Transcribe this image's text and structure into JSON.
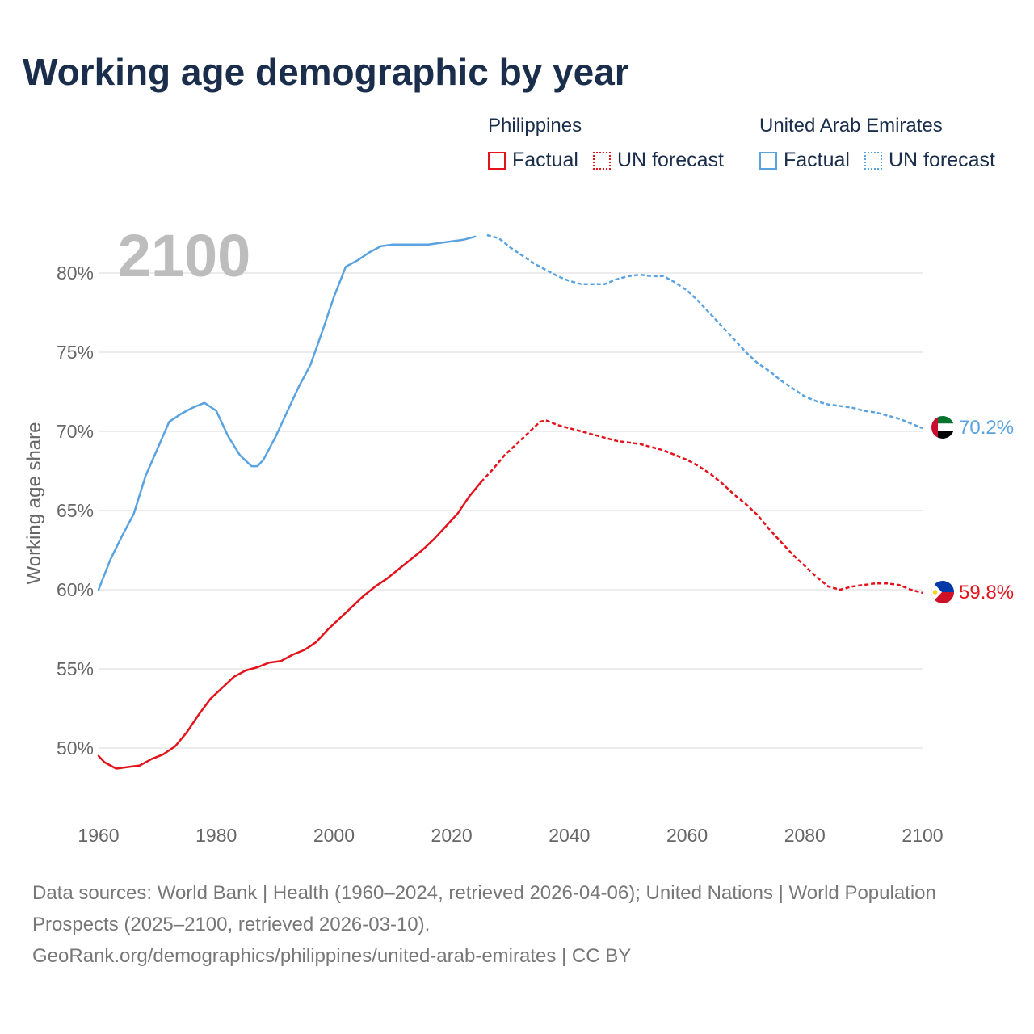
{
  "title": "Working age demographic by year",
  "legend": {
    "groups": [
      {
        "country": "Philippines",
        "factual_label": "Factual",
        "forecast_label": "UN forecast",
        "color": "#e3121b"
      },
      {
        "country": "United Arab Emirates",
        "factual_label": "Factual",
        "forecast_label": "UN forecast",
        "color": "#5ba3e0"
      }
    ]
  },
  "chart_data": {
    "type": "line",
    "title": "Working age demographic by year",
    "year_label": "2100",
    "xlabel": "",
    "ylabel": "Working age share",
    "xlim": [
      1960,
      2100
    ],
    "ylim": [
      46,
      84
    ],
    "x_ticks": [
      1960,
      1980,
      2000,
      2020,
      2040,
      2060,
      2080,
      2100
    ],
    "y_ticks": [
      50,
      55,
      60,
      65,
      70,
      75,
      80
    ],
    "y_tick_labels": [
      "50%",
      "55%",
      "60%",
      "65%",
      "70%",
      "75%",
      "80%"
    ],
    "grid": true,
    "forecast_start_year": 2025,
    "series": [
      {
        "name": "United Arab Emirates",
        "color": "#5ba3e0",
        "end_label": "70.2%",
        "flag": "uae-flag",
        "points": [
          [
            1960,
            60.0
          ],
          [
            1962,
            61.9
          ],
          [
            1964,
            63.4
          ],
          [
            1966,
            64.8
          ],
          [
            1968,
            67.2
          ],
          [
            1970,
            68.9
          ],
          [
            1972,
            70.6
          ],
          [
            1974,
            71.1
          ],
          [
            1976,
            71.5
          ],
          [
            1978,
            71.8
          ],
          [
            1980,
            71.3
          ],
          [
            1982,
            69.7
          ],
          [
            1984,
            68.5
          ],
          [
            1986,
            67.8
          ],
          [
            1987,
            67.8
          ],
          [
            1988,
            68.2
          ],
          [
            1990,
            69.6
          ],
          [
            1992,
            71.2
          ],
          [
            1994,
            72.8
          ],
          [
            1996,
            74.2
          ],
          [
            1998,
            76.3
          ],
          [
            2000,
            78.5
          ],
          [
            2002,
            80.4
          ],
          [
            2004,
            80.8
          ],
          [
            2006,
            81.3
          ],
          [
            2008,
            81.7
          ],
          [
            2010,
            81.8
          ],
          [
            2014,
            81.8
          ],
          [
            2016,
            81.8
          ],
          [
            2018,
            81.9
          ],
          [
            2020,
            82.0
          ],
          [
            2022,
            82.1
          ],
          [
            2024,
            82.3
          ],
          [
            2026,
            82.4
          ],
          [
            2028,
            82.2
          ],
          [
            2030,
            81.6
          ],
          [
            2032,
            81.1
          ],
          [
            2034,
            80.6
          ],
          [
            2036,
            80.2
          ],
          [
            2038,
            79.8
          ],
          [
            2040,
            79.5
          ],
          [
            2042,
            79.3
          ],
          [
            2044,
            79.3
          ],
          [
            2046,
            79.3
          ],
          [
            2048,
            79.6
          ],
          [
            2050,
            79.8
          ],
          [
            2052,
            79.9
          ],
          [
            2054,
            79.8
          ],
          [
            2056,
            79.8
          ],
          [
            2058,
            79.4
          ],
          [
            2060,
            78.9
          ],
          [
            2062,
            78.2
          ],
          [
            2064,
            77.4
          ],
          [
            2066,
            76.6
          ],
          [
            2068,
            75.8
          ],
          [
            2070,
            75.0
          ],
          [
            2072,
            74.3
          ],
          [
            2074,
            73.8
          ],
          [
            2076,
            73.2
          ],
          [
            2078,
            72.7
          ],
          [
            2080,
            72.2
          ],
          [
            2082,
            71.9
          ],
          [
            2084,
            71.7
          ],
          [
            2086,
            71.6
          ],
          [
            2088,
            71.5
          ],
          [
            2090,
            71.3
          ],
          [
            2092,
            71.2
          ],
          [
            2094,
            71.0
          ],
          [
            2096,
            70.8
          ],
          [
            2098,
            70.5
          ],
          [
            2100,
            70.2
          ]
        ]
      },
      {
        "name": "Philippines",
        "color": "#e3121b",
        "end_label": "59.8%",
        "flag": "philippines-flag",
        "points": [
          [
            1960,
            49.5
          ],
          [
            1961,
            49.1
          ],
          [
            1963,
            48.7
          ],
          [
            1965,
            48.8
          ],
          [
            1967,
            48.9
          ],
          [
            1969,
            49.3
          ],
          [
            1971,
            49.6
          ],
          [
            1973,
            50.1
          ],
          [
            1975,
            51.0
          ],
          [
            1977,
            52.1
          ],
          [
            1979,
            53.1
          ],
          [
            1981,
            53.8
          ],
          [
            1983,
            54.5
          ],
          [
            1985,
            54.9
          ],
          [
            1987,
            55.1
          ],
          [
            1989,
            55.4
          ],
          [
            1991,
            55.5
          ],
          [
            1993,
            55.9
          ],
          [
            1995,
            56.2
          ],
          [
            1997,
            56.7
          ],
          [
            1999,
            57.5
          ],
          [
            2001,
            58.2
          ],
          [
            2003,
            58.9
          ],
          [
            2005,
            59.6
          ],
          [
            2007,
            60.2
          ],
          [
            2009,
            60.7
          ],
          [
            2011,
            61.3
          ],
          [
            2013,
            61.9
          ],
          [
            2015,
            62.5
          ],
          [
            2017,
            63.2
          ],
          [
            2019,
            64.0
          ],
          [
            2021,
            64.8
          ],
          [
            2023,
            65.9
          ],
          [
            2025,
            66.8
          ],
          [
            2027,
            67.6
          ],
          [
            2029,
            68.5
          ],
          [
            2031,
            69.2
          ],
          [
            2033,
            69.9
          ],
          [
            2035,
            70.6
          ],
          [
            2036,
            70.7
          ],
          [
            2038,
            70.4
          ],
          [
            2040,
            70.2
          ],
          [
            2042,
            70.0
          ],
          [
            2044,
            69.8
          ],
          [
            2046,
            69.6
          ],
          [
            2048,
            69.4
          ],
          [
            2050,
            69.3
          ],
          [
            2052,
            69.2
          ],
          [
            2054,
            69.0
          ],
          [
            2056,
            68.8
          ],
          [
            2058,
            68.5
          ],
          [
            2060,
            68.2
          ],
          [
            2062,
            67.8
          ],
          [
            2064,
            67.3
          ],
          [
            2066,
            66.7
          ],
          [
            2068,
            66.0
          ],
          [
            2070,
            65.4
          ],
          [
            2072,
            64.7
          ],
          [
            2074,
            63.8
          ],
          [
            2076,
            63.0
          ],
          [
            2078,
            62.2
          ],
          [
            2080,
            61.5
          ],
          [
            2082,
            60.8
          ],
          [
            2084,
            60.2
          ],
          [
            2086,
            60.0
          ],
          [
            2088,
            60.2
          ],
          [
            2090,
            60.3
          ],
          [
            2092,
            60.4
          ],
          [
            2094,
            60.4
          ],
          [
            2096,
            60.3
          ],
          [
            2098,
            60.0
          ],
          [
            2100,
            59.8
          ]
        ]
      }
    ]
  },
  "footer": {
    "sources": "Data sources: World Bank | Health (1960–2024, retrieved 2026-04-06); United Nations | World Population Prospects (2025–2100, retrieved 2026-03-10).",
    "credit": "GeoRank.org/demographics/philippines/united-arab-emirates | CC BY"
  }
}
